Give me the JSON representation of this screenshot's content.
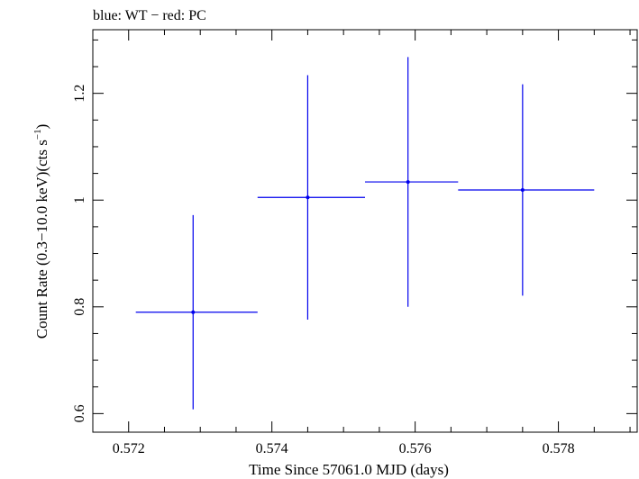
{
  "chart_data": {
    "type": "scatter",
    "title": "blue: WT − red: PC",
    "xlabel": "Time Since 57061.0 MJD (days)",
    "ylabel_main": "Count Rate (0.3−10.0 keV)(cts s",
    "ylabel_sup": "−1",
    "ylabel_close": ")",
    "xlim": [
      0.5715,
      0.5791
    ],
    "ylim": [
      0.5652,
      1.3192
    ],
    "xticks": [
      {
        "value": 0.572,
        "label": "0.572"
      },
      {
        "value": 0.574,
        "label": "0.574"
      },
      {
        "value": 0.576,
        "label": "0.576"
      },
      {
        "value": 0.578,
        "label": "0.578"
      }
    ],
    "yticks": [
      {
        "value": 0.6,
        "label": "0.6"
      },
      {
        "value": 0.8,
        "label": "0.8"
      },
      {
        "value": 1.0,
        "label": "1"
      },
      {
        "value": 1.2,
        "label": "1.2"
      }
    ],
    "x_minor_step": 0.0005,
    "y_minor_step": 0.05,
    "series": [
      {
        "name": "WT",
        "color": "#0000ee",
        "points": [
          {
            "x": 0.5729,
            "xlo": 0.5721,
            "xhi": 0.5738,
            "y": 0.79,
            "ylo": 0.608,
            "yhi": 0.972
          },
          {
            "x": 0.5745,
            "xlo": 0.5738,
            "xhi": 0.5753,
            "y": 1.005,
            "ylo": 0.776,
            "yhi": 1.234
          },
          {
            "x": 0.5759,
            "xlo": 0.5753,
            "xhi": 0.5766,
            "y": 1.034,
            "ylo": 0.8,
            "yhi": 1.268
          },
          {
            "x": 0.5775,
            "xlo": 0.5766,
            "xhi": 0.5785,
            "y": 1.019,
            "ylo": 0.821,
            "yhi": 1.217
          }
        ]
      }
    ]
  }
}
